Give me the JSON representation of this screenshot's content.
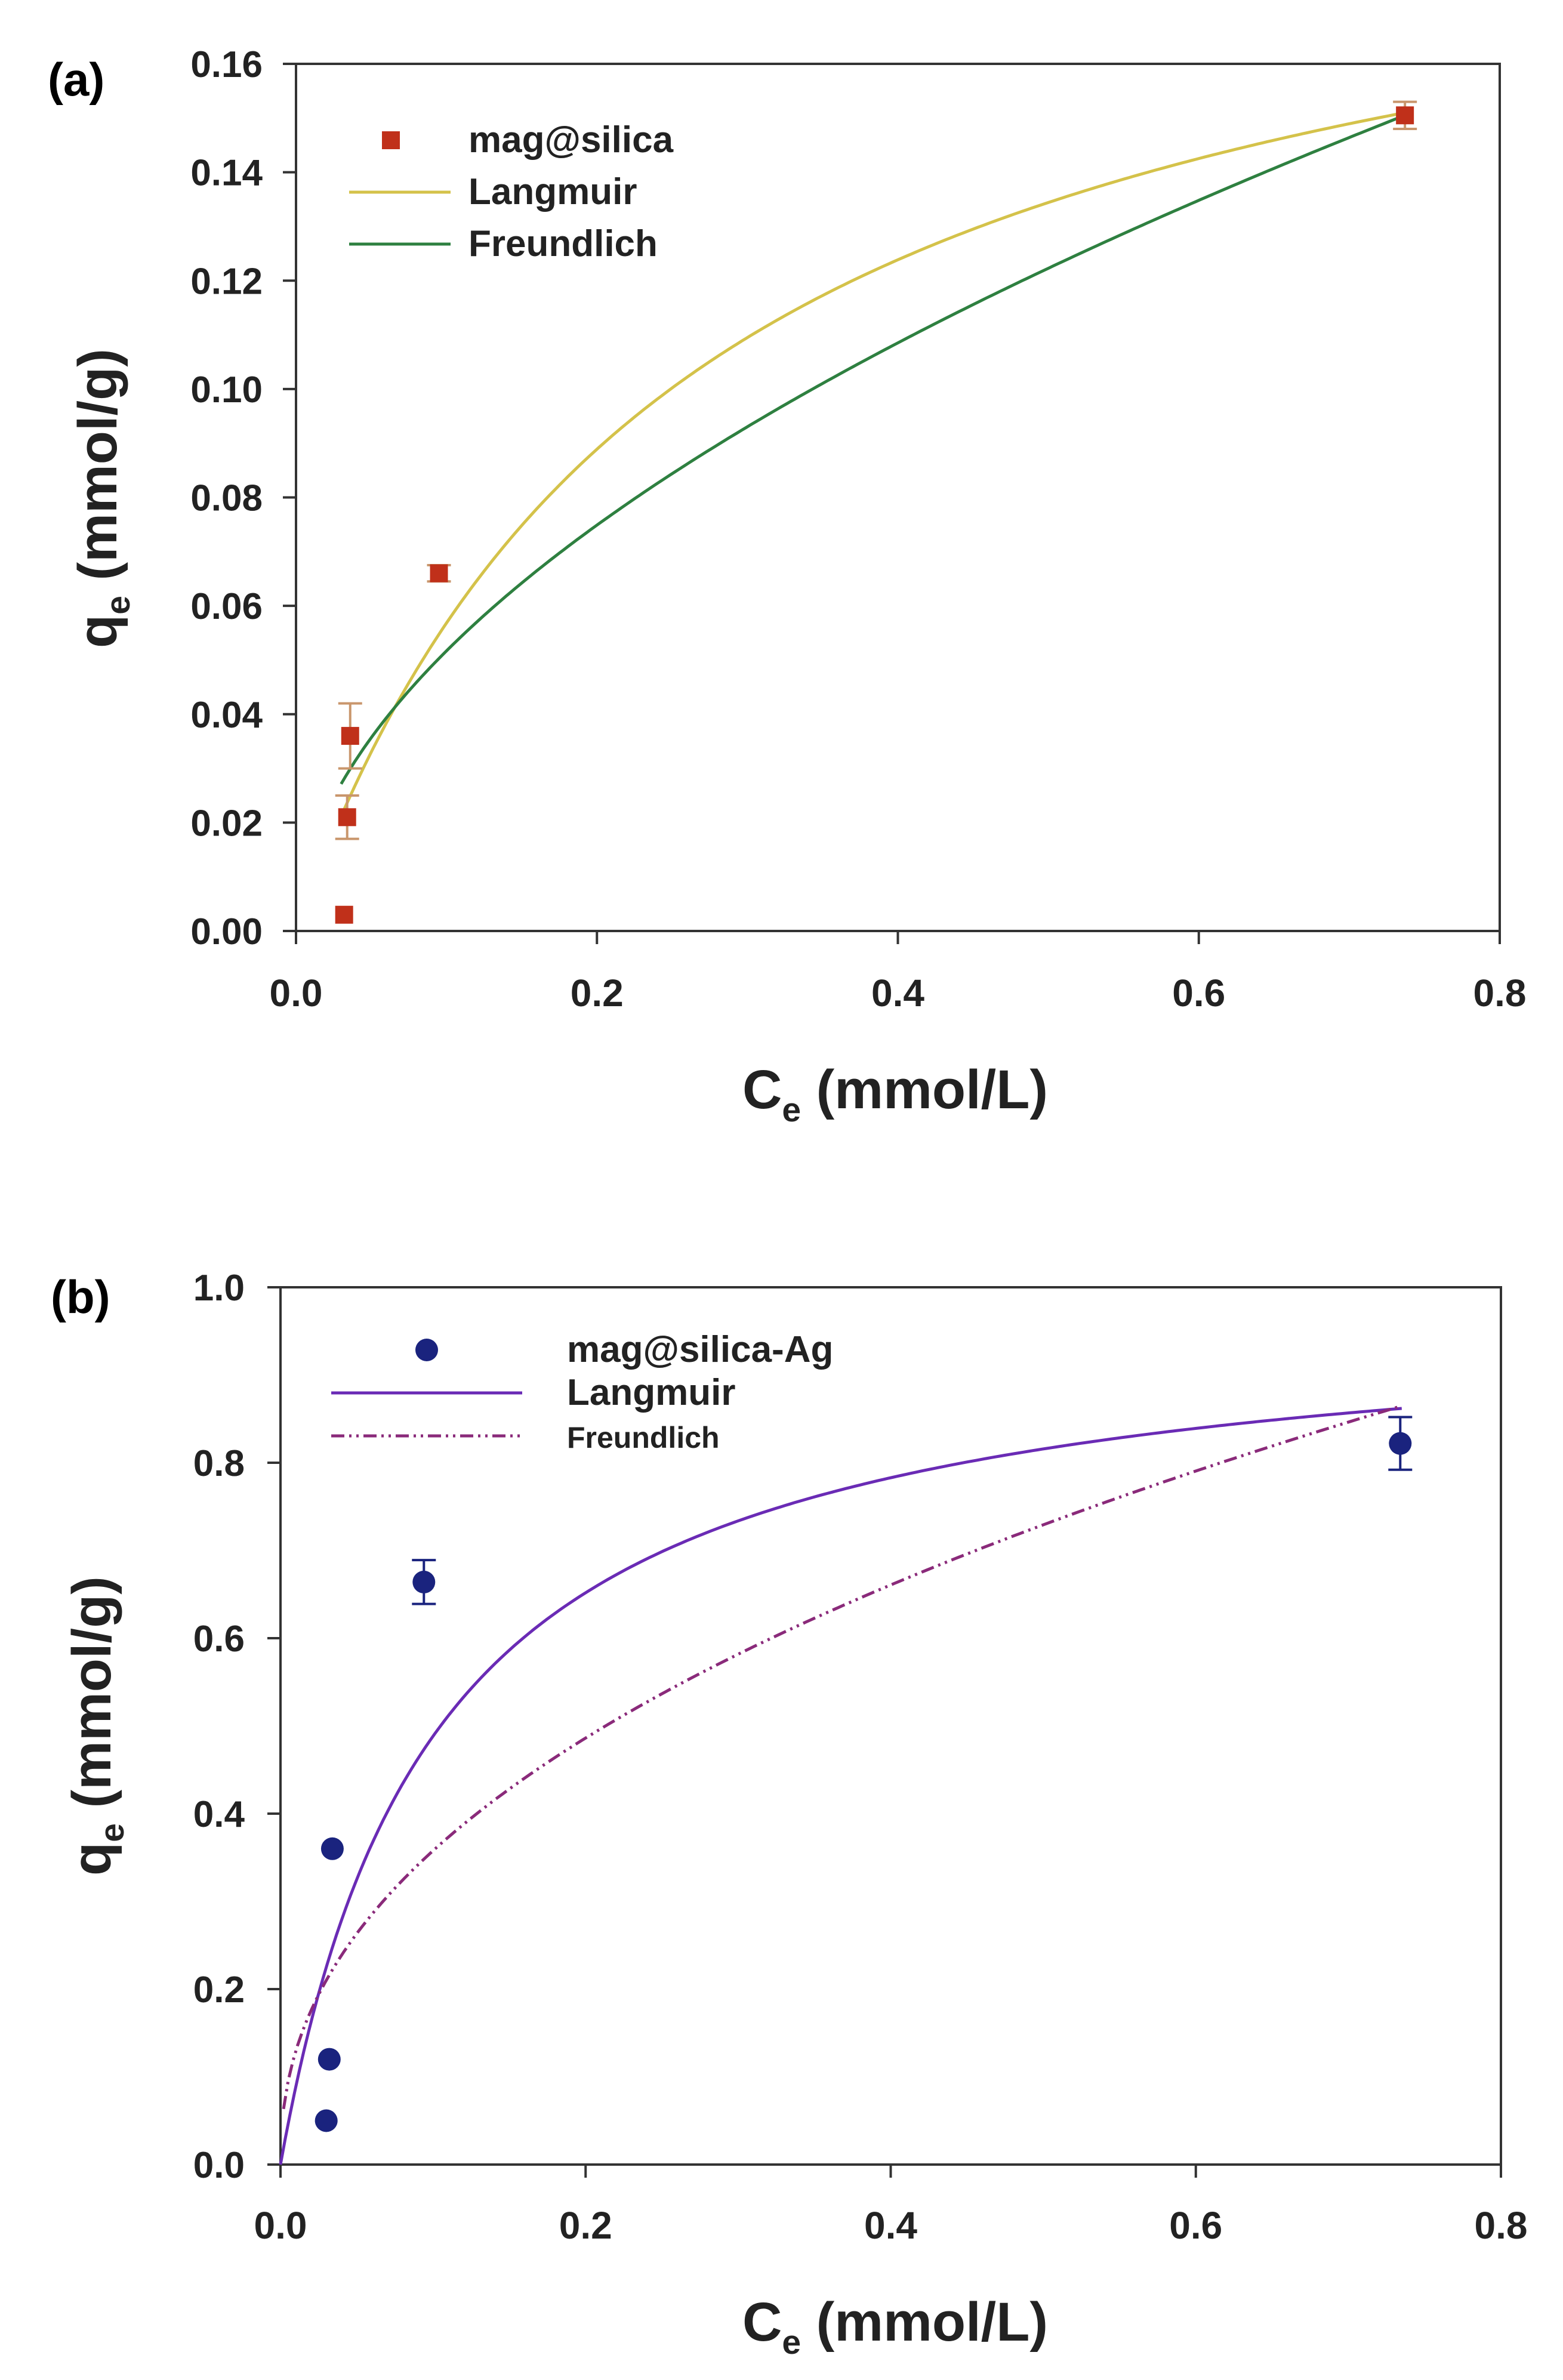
{
  "chart_data": [
    {
      "type": "scatter",
      "panel_label": "(a)",
      "xlabel_main": "C",
      "xlabel_sub": "e",
      "xlabel_rest": " (mmol/L)",
      "ylabel_main": "q",
      "ylabel_sub": "e",
      "ylabel_rest": " (mmol/g)",
      "xlim": [
        0,
        0.8
      ],
      "ylim": [
        0,
        0.16
      ],
      "xticks": [
        "0.0",
        "0.2",
        "0.4",
        "0.6",
        "0.8"
      ],
      "yticks": [
        "0.00",
        "0.02",
        "0.04",
        "0.06",
        "0.08",
        "0.10",
        "0.12",
        "0.14",
        "0.16"
      ],
      "legend_position": "top-left",
      "legend": [
        "mag@silica",
        "Langmuir",
        "Freundlich"
      ],
      "points": {
        "name": "mag@silica",
        "marker": "square",
        "color": "#c0301a",
        "errcolor": "#c9966c",
        "x": [
          0.032,
          0.034,
          0.036,
          0.095,
          0.737
        ],
        "y": [
          0.003,
          0.021,
          0.036,
          0.066,
          0.1505
        ],
        "err": [
          0.0,
          0.004,
          0.006,
          0.0015,
          0.0025
        ]
      },
      "curves": [
        {
          "name": "Langmuir",
          "model": "langmuir",
          "qmax": 0.2041,
          "K": 3.858,
          "color": "#d4c24a",
          "dash": "none",
          "x_start": 0.03,
          "x_end": 0.74
        },
        {
          "name": "Freundlich",
          "model": "freundlich",
          "KF": 0.1772,
          "n": 1.8687,
          "color": "#2e8040",
          "dash": "none",
          "x_start": 0.03,
          "x_end": 0.74
        }
      ]
    },
    {
      "type": "scatter",
      "panel_label": "(b)",
      "xlabel_main": "C",
      "xlabel_sub": "e",
      "xlabel_rest": " (mmol/L)",
      "ylabel_main": "q",
      "ylabel_sub": "e",
      "ylabel_rest": " (mmol/g)",
      "xlim": [
        0,
        0.8
      ],
      "ylim": [
        0,
        1.0
      ],
      "xticks": [
        "0.0",
        "0.2",
        "0.4",
        "0.6",
        "0.8"
      ],
      "yticks": [
        "0.0",
        "0.2",
        "0.4",
        "0.6",
        "0.8",
        "1.0"
      ],
      "legend_position": "top-left",
      "legend": [
        "mag@silica-Ag",
        "Langmuir",
        "Freundlich"
      ],
      "points": {
        "name": "mag@silica-Ag",
        "marker": "circle",
        "color": "#1a237e",
        "errcolor": "#1a237e",
        "x": [
          0.03,
          0.032,
          0.034,
          0.094,
          0.734
        ],
        "y": [
          0.05,
          0.12,
          0.36,
          0.664,
          0.822
        ],
        "err": [
          0.0,
          0.0,
          0.0,
          0.025,
          0.03
        ]
      },
      "curves": [
        {
          "name": "Langmuir",
          "model": "langmuir",
          "qmax": 0.98,
          "K": 9.93,
          "color": "#6a2bb5",
          "dash": "none",
          "x_start": 0.0,
          "x_end": 0.735
        },
        {
          "name": "Freundlich",
          "model": "freundlich",
          "KF": 0.991,
          "n": 2.26,
          "color": "#8a2a7a",
          "dash": "22,8,4,8,4,8",
          "x_start": 0.002,
          "x_end": 0.735
        }
      ]
    }
  ]
}
